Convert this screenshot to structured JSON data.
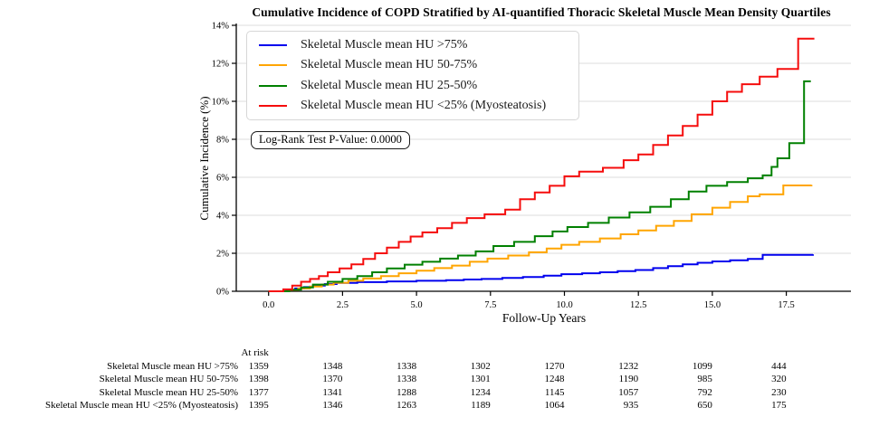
{
  "title": "Cumulative Incidence of COPD Stratified by AI-quantified Thoracic Skeletal Muscle Mean Density Quartiles",
  "pvalue_label": "Log-Rank Test P-Value: 0.0000",
  "axes": {
    "x_label": "Follow-Up Years",
    "y_label": "Cumulative Incidence (%)",
    "x_tick_values": [
      0,
      2.5,
      5,
      7.5,
      10,
      12.5,
      15,
      17.5
    ],
    "x_tick_labels": [
      "0.0",
      "2.5",
      "5.0",
      "7.5",
      "10.0",
      "12.5",
      "15.0",
      "17.5"
    ],
    "y_tick_values": [
      0,
      2,
      4,
      6,
      8,
      10,
      12,
      14
    ],
    "y_tick_labels": [
      "0%",
      "2%",
      "4%",
      "6%",
      "8%",
      "10%",
      "12%",
      "14%"
    ]
  },
  "colors": {
    "q1_blue": "#0000ee",
    "q2_orange": "#ffa500",
    "q3_green": "#008000",
    "q4_red": "#f50d0d",
    "grid": "#dcdcdc",
    "spine": "#000000"
  },
  "chart_data": {
    "type": "line",
    "subtype": "step-cumulative-incidence",
    "title": "Cumulative Incidence of COPD Stratified by AI-quantified Thoracic Skeletal Muscle Mean Density Quartiles",
    "xlabel": "Follow-Up Years",
    "ylabel": "Cumulative Incidence (%)",
    "xlim": [
      -1.1,
      19.7
    ],
    "ylim": [
      0,
      14
    ],
    "grid": true,
    "legend_position": "upper-left",
    "annotation": "Log-Rank Test P-Value: 0.0000",
    "series": [
      {
        "name": "Skeletal Muscle mean HU >75%",
        "color": "#0000ee",
        "points": [
          [
            0,
            0
          ],
          [
            0.6,
            0.07
          ],
          [
            0.9,
            0.15
          ],
          [
            1.2,
            0.22
          ],
          [
            1.5,
            0.3
          ],
          [
            1.9,
            0.38
          ],
          [
            2.3,
            0.44
          ],
          [
            3.0,
            0.48
          ],
          [
            4.0,
            0.52
          ],
          [
            5.0,
            0.55
          ],
          [
            6.0,
            0.58
          ],
          [
            6.6,
            0.62
          ],
          [
            7.2,
            0.65
          ],
          [
            7.9,
            0.7
          ],
          [
            8.6,
            0.75
          ],
          [
            9.3,
            0.82
          ],
          [
            9.9,
            0.9
          ],
          [
            10.6,
            0.95
          ],
          [
            11.2,
            1.0
          ],
          [
            11.8,
            1.06
          ],
          [
            12.4,
            1.12
          ],
          [
            13.0,
            1.22
          ],
          [
            13.5,
            1.32
          ],
          [
            14.0,
            1.42
          ],
          [
            14.5,
            1.5
          ],
          [
            15.0,
            1.57
          ],
          [
            15.6,
            1.63
          ],
          [
            16.2,
            1.7
          ],
          [
            16.7,
            1.92
          ],
          [
            18.4,
            1.95
          ]
        ]
      },
      {
        "name": "Skeletal Muscle mean HU 50-75%",
        "color": "#ffa500",
        "points": [
          [
            0,
            0
          ],
          [
            0.7,
            0.07
          ],
          [
            1.0,
            0.15
          ],
          [
            1.4,
            0.25
          ],
          [
            1.8,
            0.35
          ],
          [
            2.2,
            0.45
          ],
          [
            2.7,
            0.55
          ],
          [
            3.2,
            0.67
          ],
          [
            3.8,
            0.8
          ],
          [
            4.4,
            0.95
          ],
          [
            5.0,
            1.08
          ],
          [
            5.6,
            1.22
          ],
          [
            6.2,
            1.35
          ],
          [
            6.8,
            1.55
          ],
          [
            7.4,
            1.72
          ],
          [
            8.1,
            1.88
          ],
          [
            8.8,
            2.05
          ],
          [
            9.4,
            2.25
          ],
          [
            9.9,
            2.45
          ],
          [
            10.5,
            2.6
          ],
          [
            11.2,
            2.78
          ],
          [
            11.9,
            3.0
          ],
          [
            12.5,
            3.2
          ],
          [
            13.1,
            3.45
          ],
          [
            13.7,
            3.7
          ],
          [
            14.3,
            4.05
          ],
          [
            15.0,
            4.4
          ],
          [
            15.6,
            4.7
          ],
          [
            16.2,
            5.0
          ],
          [
            16.6,
            5.1
          ],
          [
            17.4,
            5.57
          ],
          [
            18.35,
            5.6
          ]
        ]
      },
      {
        "name": "Skeletal Muscle mean HU 25-50%",
        "color": "#008000",
        "points": [
          [
            0,
            0
          ],
          [
            0.7,
            0.08
          ],
          [
            1.1,
            0.2
          ],
          [
            1.5,
            0.35
          ],
          [
            2.0,
            0.5
          ],
          [
            2.5,
            0.65
          ],
          [
            3.0,
            0.8
          ],
          [
            3.5,
            1.0
          ],
          [
            4.0,
            1.2
          ],
          [
            4.6,
            1.4
          ],
          [
            5.2,
            1.55
          ],
          [
            5.8,
            1.72
          ],
          [
            6.4,
            1.88
          ],
          [
            7.0,
            2.1
          ],
          [
            7.6,
            2.38
          ],
          [
            8.3,
            2.6
          ],
          [
            9.0,
            2.9
          ],
          [
            9.6,
            3.15
          ],
          [
            10.1,
            3.38
          ],
          [
            10.8,
            3.6
          ],
          [
            11.5,
            3.88
          ],
          [
            12.2,
            4.15
          ],
          [
            12.9,
            4.45
          ],
          [
            13.6,
            4.85
          ],
          [
            14.2,
            5.25
          ],
          [
            14.8,
            5.55
          ],
          [
            15.5,
            5.75
          ],
          [
            16.2,
            5.95
          ],
          [
            16.7,
            6.1
          ],
          [
            17.0,
            6.55
          ],
          [
            17.2,
            7.0
          ],
          [
            17.6,
            7.8
          ],
          [
            18.1,
            11.05
          ],
          [
            18.3,
            11.1
          ]
        ]
      },
      {
        "name": "Skeletal Muscle mean HU <25% (Myosteatosis)",
        "color": "#f50d0d",
        "points": [
          [
            0,
            0
          ],
          [
            0.5,
            0.1
          ],
          [
            0.8,
            0.3
          ],
          [
            1.1,
            0.5
          ],
          [
            1.4,
            0.65
          ],
          [
            1.7,
            0.8
          ],
          [
            2.0,
            1.0
          ],
          [
            2.4,
            1.2
          ],
          [
            2.8,
            1.42
          ],
          [
            3.2,
            1.7
          ],
          [
            3.6,
            2.0
          ],
          [
            4.0,
            2.3
          ],
          [
            4.4,
            2.6
          ],
          [
            4.8,
            2.88
          ],
          [
            5.2,
            3.1
          ],
          [
            5.7,
            3.32
          ],
          [
            6.2,
            3.6
          ],
          [
            6.7,
            3.85
          ],
          [
            7.3,
            4.05
          ],
          [
            8.0,
            4.3
          ],
          [
            8.5,
            4.85
          ],
          [
            9.0,
            5.2
          ],
          [
            9.5,
            5.55
          ],
          [
            10.0,
            6.05
          ],
          [
            10.5,
            6.3
          ],
          [
            11.3,
            6.5
          ],
          [
            12.0,
            6.9
          ],
          [
            12.5,
            7.2
          ],
          [
            13.0,
            7.7
          ],
          [
            13.5,
            8.2
          ],
          [
            14.0,
            8.7
          ],
          [
            14.5,
            9.3
          ],
          [
            15.0,
            10.0
          ],
          [
            15.5,
            10.5
          ],
          [
            16.0,
            10.9
          ],
          [
            16.6,
            11.3
          ],
          [
            17.2,
            11.7
          ],
          [
            17.9,
            13.3
          ],
          [
            18.45,
            13.3
          ]
        ]
      }
    ],
    "at_risk_table": {
      "header": "At risk",
      "times": [
        0,
        2.5,
        5,
        7.5,
        10,
        12.5,
        15,
        17.5
      ],
      "rows": [
        {
          "label": "Skeletal Muscle mean HU >75%",
          "counts": [
            1359,
            1348,
            1338,
            1302,
            1270,
            1232,
            1099,
            444
          ]
        },
        {
          "label": "Skeletal Muscle mean HU 50-75%",
          "counts": [
            1398,
            1370,
            1338,
            1301,
            1248,
            1190,
            985,
            320
          ]
        },
        {
          "label": "Skeletal Muscle mean HU 25-50%",
          "counts": [
            1377,
            1341,
            1288,
            1234,
            1145,
            1057,
            792,
            230
          ]
        },
        {
          "label": "Skeletal Muscle mean HU <25% (Myosteatosis)",
          "counts": [
            1395,
            1346,
            1263,
            1189,
            1064,
            935,
            650,
            175
          ]
        }
      ]
    }
  }
}
